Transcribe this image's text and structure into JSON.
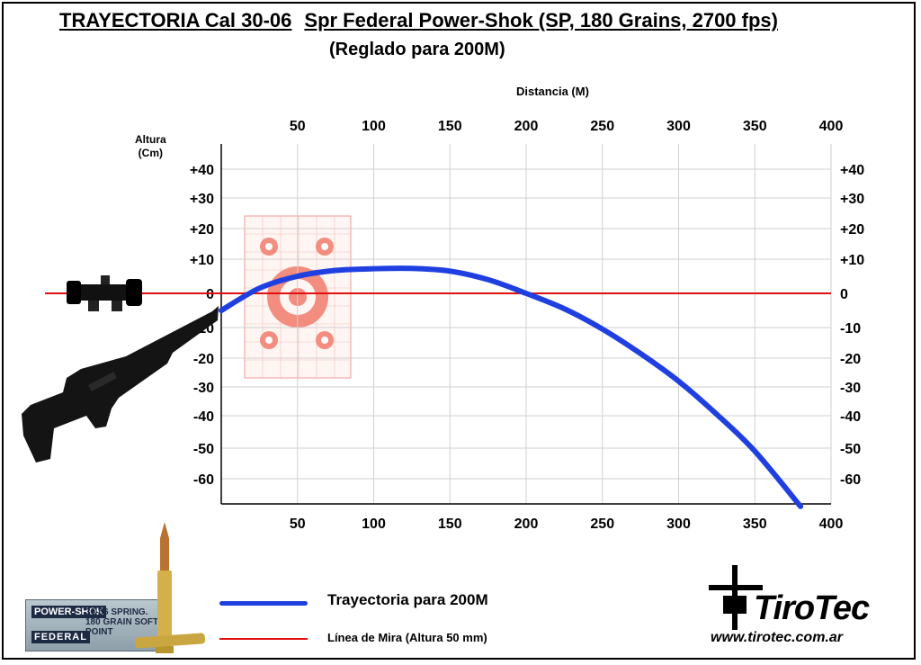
{
  "title": {
    "main": "TRAYECTORIA Cal 30-06",
    "spec": "Spr Federal Power-Shok (SP, 180 Grains, 2700 fps)",
    "subtitle": "(Reglado para 200M)"
  },
  "chart_data": {
    "type": "line",
    "xlabel": "Distancia (M)",
    "ylabel": "Altura (Cm)",
    "xlim": [
      0,
      400
    ],
    "ylim": [
      -70,
      50
    ],
    "x_ticks": [
      50,
      100,
      150,
      200,
      250,
      300,
      350,
      400
    ],
    "y_ticks": [
      {
        "value": 40,
        "label": "+40"
      },
      {
        "value": 30,
        "label": "+30"
      },
      {
        "value": 20,
        "label": "+20"
      },
      {
        "value": 10,
        "label": "+10"
      },
      {
        "value": 0,
        "label": "0"
      },
      {
        "value": -10,
        "label": "-10"
      },
      {
        "value": -20,
        "label": "-20"
      },
      {
        "value": -30,
        "label": "-30"
      },
      {
        "value": -40,
        "label": "-40"
      },
      {
        "value": -50,
        "label": "-50"
      },
      {
        "value": -60,
        "label": "-60"
      }
    ],
    "grid": true,
    "series": [
      {
        "name": "Trayectoria para 200M",
        "color": "#1f3fe0",
        "x": [
          0,
          25,
          50,
          75,
          100,
          125,
          150,
          175,
          200,
          225,
          250,
          275,
          300,
          325,
          350,
          380
        ],
        "y": [
          -5,
          1.5,
          5,
          6.7,
          7.2,
          7.3,
          6.5,
          4,
          0,
          -4.5,
          -10.5,
          -18.5,
          -28,
          -39.5,
          -51,
          -71
        ]
      },
      {
        "name": "Línea de Mira (Altura  50 mm)",
        "color": "#e01010",
        "x": [
          0,
          400
        ],
        "y": [
          0,
          0
        ]
      }
    ]
  },
  "legend": {
    "blue_label": "Trayectoria para 200M",
    "red_label": "Línea de Mira (Altura  50 mm)"
  },
  "ammo_box": {
    "brand_label": "POWER-SHOK",
    "caliber_label": "30-06 SPRING.",
    "grain_label": "180 GRAIN SOFT POINT",
    "maker_label": "FEDERAL"
  },
  "brand": {
    "name": "TiroTec",
    "url": "www.tirotec.com.ar"
  }
}
